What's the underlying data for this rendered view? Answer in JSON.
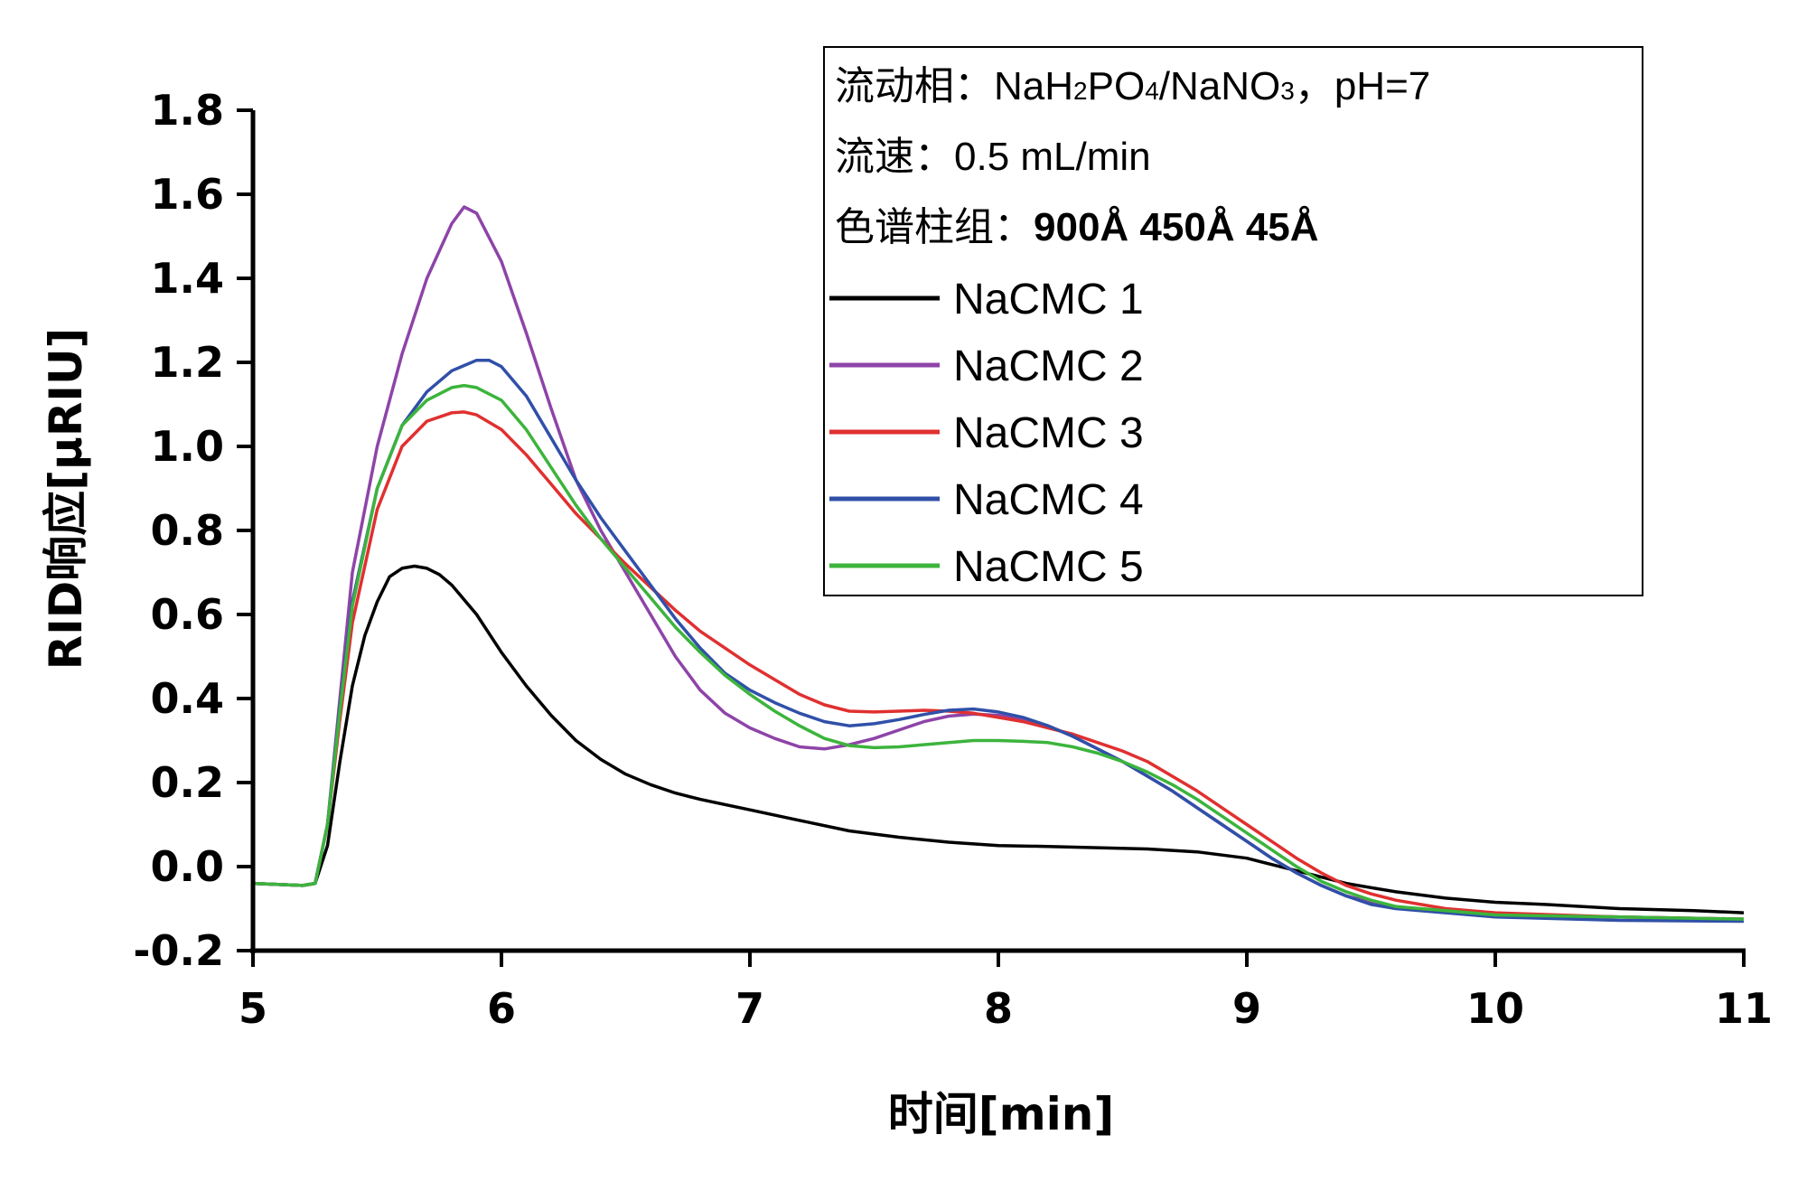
{
  "chart_data": {
    "type": "line",
    "xlabel": "时间[min]",
    "ylabel": "RID响应[μRIU]",
    "xlim": [
      5,
      11
    ],
    "ylim": [
      -0.2,
      1.8
    ],
    "xticks": [
      "5",
      "6",
      "7",
      "8",
      "9",
      "10",
      "11"
    ],
    "yticks": [
      "-0.2",
      "0.0",
      "0.2",
      "0.4",
      "0.6",
      "0.8",
      "1.0",
      "1.2",
      "1.4",
      "1.6",
      "1.8"
    ],
    "grid": false,
    "legend_position": "top-right",
    "annotations": {
      "mobile_phase_label": "流动相：",
      "mobile_phase_part1": "NaH",
      "mobile_phase_sub1": "2",
      "mobile_phase_part2": "PO",
      "mobile_phase_sub2": "4",
      "mobile_phase_part3": "/NaNO",
      "mobile_phase_sub3": "3",
      "mobile_phase_part4": "，pH=7",
      "flow_rate": "流速：0.5 mL/min",
      "column_label": "色谱柱组：",
      "column_value": "900Å 450Å 45Å"
    },
    "series": [
      {
        "name": "NaCMC 1",
        "color": "#000000",
        "points": [
          [
            5.0,
            -0.04
          ],
          [
            5.2,
            -0.045
          ],
          [
            5.25,
            -0.04
          ],
          [
            5.3,
            0.05
          ],
          [
            5.35,
            0.25
          ],
          [
            5.4,
            0.43
          ],
          [
            5.45,
            0.55
          ],
          [
            5.5,
            0.63
          ],
          [
            5.55,
            0.69
          ],
          [
            5.6,
            0.71
          ],
          [
            5.65,
            0.715
          ],
          [
            5.7,
            0.71
          ],
          [
            5.75,
            0.695
          ],
          [
            5.8,
            0.67
          ],
          [
            5.9,
            0.6
          ],
          [
            6.0,
            0.51
          ],
          [
            6.1,
            0.43
          ],
          [
            6.2,
            0.36
          ],
          [
            6.3,
            0.3
          ],
          [
            6.4,
            0.255
          ],
          [
            6.5,
            0.22
          ],
          [
            6.6,
            0.195
          ],
          [
            6.7,
            0.175
          ],
          [
            6.8,
            0.16
          ],
          [
            7.0,
            0.135
          ],
          [
            7.2,
            0.11
          ],
          [
            7.4,
            0.085
          ],
          [
            7.6,
            0.07
          ],
          [
            7.8,
            0.058
          ],
          [
            8.0,
            0.05
          ],
          [
            8.2,
            0.048
          ],
          [
            8.4,
            0.045
          ],
          [
            8.6,
            0.042
          ],
          [
            8.8,
            0.035
          ],
          [
            9.0,
            0.02
          ],
          [
            9.1,
            0.005
          ],
          [
            9.2,
            -0.01
          ],
          [
            9.3,
            -0.025
          ],
          [
            9.4,
            -0.04
          ],
          [
            9.5,
            -0.05
          ],
          [
            9.6,
            -0.06
          ],
          [
            9.8,
            -0.075
          ],
          [
            10.0,
            -0.085
          ],
          [
            10.2,
            -0.09
          ],
          [
            10.5,
            -0.1
          ],
          [
            10.8,
            -0.105
          ],
          [
            11.0,
            -0.11
          ]
        ]
      },
      {
        "name": "NaCMC 2",
        "color": "#8e44a8",
        "points": [
          [
            5.0,
            -0.04
          ],
          [
            5.2,
            -0.045
          ],
          [
            5.25,
            -0.04
          ],
          [
            5.3,
            0.1
          ],
          [
            5.35,
            0.4
          ],
          [
            5.4,
            0.7
          ],
          [
            5.5,
            1.0
          ],
          [
            5.6,
            1.22
          ],
          [
            5.7,
            1.4
          ],
          [
            5.8,
            1.53
          ],
          [
            5.85,
            1.57
          ],
          [
            5.9,
            1.555
          ],
          [
            6.0,
            1.44
          ],
          [
            6.1,
            1.27
          ],
          [
            6.2,
            1.09
          ],
          [
            6.3,
            0.92
          ],
          [
            6.4,
            0.8
          ],
          [
            6.5,
            0.7
          ],
          [
            6.6,
            0.6
          ],
          [
            6.7,
            0.5
          ],
          [
            6.8,
            0.42
          ],
          [
            6.9,
            0.365
          ],
          [
            7.0,
            0.33
          ],
          [
            7.1,
            0.305
          ],
          [
            7.2,
            0.285
          ],
          [
            7.3,
            0.28
          ],
          [
            7.4,
            0.29
          ],
          [
            7.5,
            0.305
          ],
          [
            7.6,
            0.325
          ],
          [
            7.7,
            0.345
          ],
          [
            7.8,
            0.358
          ],
          [
            7.9,
            0.363
          ],
          [
            8.0,
            0.36
          ],
          [
            8.1,
            0.35
          ],
          [
            8.2,
            0.335
          ],
          [
            8.3,
            0.31
          ],
          [
            8.4,
            0.28
          ],
          [
            8.5,
            0.25
          ],
          [
            8.6,
            0.215
          ],
          [
            8.7,
            0.18
          ],
          [
            8.8,
            0.14
          ],
          [
            8.9,
            0.1
          ],
          [
            9.0,
            0.06
          ],
          [
            9.1,
            0.02
          ],
          [
            9.2,
            -0.015
          ],
          [
            9.3,
            -0.045
          ],
          [
            9.4,
            -0.07
          ],
          [
            9.5,
            -0.085
          ],
          [
            9.6,
            -0.095
          ],
          [
            9.8,
            -0.108
          ],
          [
            10.0,
            -0.115
          ],
          [
            10.5,
            -0.12
          ],
          [
            11.0,
            -0.125
          ]
        ]
      },
      {
        "name": "NaCMC 3",
        "color": "#e03030",
        "points": [
          [
            5.0,
            -0.04
          ],
          [
            5.2,
            -0.045
          ],
          [
            5.25,
            -0.04
          ],
          [
            5.3,
            0.1
          ],
          [
            5.35,
            0.35
          ],
          [
            5.4,
            0.58
          ],
          [
            5.5,
            0.85
          ],
          [
            5.6,
            1.0
          ],
          [
            5.7,
            1.06
          ],
          [
            5.8,
            1.08
          ],
          [
            5.85,
            1.082
          ],
          [
            5.9,
            1.075
          ],
          [
            6.0,
            1.04
          ],
          [
            6.1,
            0.98
          ],
          [
            6.2,
            0.91
          ],
          [
            6.3,
            0.84
          ],
          [
            6.4,
            0.78
          ],
          [
            6.5,
            0.72
          ],
          [
            6.6,
            0.665
          ],
          [
            6.7,
            0.61
          ],
          [
            6.8,
            0.56
          ],
          [
            6.9,
            0.52
          ],
          [
            7.0,
            0.48
          ],
          [
            7.1,
            0.445
          ],
          [
            7.2,
            0.41
          ],
          [
            7.3,
            0.385
          ],
          [
            7.4,
            0.37
          ],
          [
            7.5,
            0.368
          ],
          [
            7.6,
            0.37
          ],
          [
            7.7,
            0.372
          ],
          [
            7.8,
            0.37
          ],
          [
            7.9,
            0.365
          ],
          [
            8.0,
            0.355
          ],
          [
            8.1,
            0.345
          ],
          [
            8.2,
            0.33
          ],
          [
            8.3,
            0.315
          ],
          [
            8.4,
            0.295
          ],
          [
            8.5,
            0.275
          ],
          [
            8.6,
            0.25
          ],
          [
            8.7,
            0.215
          ],
          [
            8.8,
            0.18
          ],
          [
            8.9,
            0.14
          ],
          [
            9.0,
            0.1
          ],
          [
            9.1,
            0.06
          ],
          [
            9.2,
            0.02
          ],
          [
            9.3,
            -0.015
          ],
          [
            9.4,
            -0.045
          ],
          [
            9.5,
            -0.065
          ],
          [
            9.6,
            -0.08
          ],
          [
            9.8,
            -0.1
          ],
          [
            10.0,
            -0.11
          ],
          [
            10.5,
            -0.12
          ],
          [
            11.0,
            -0.125
          ]
        ]
      },
      {
        "name": "NaCMC 4",
        "color": "#3050a8",
        "points": [
          [
            5.0,
            -0.04
          ],
          [
            5.2,
            -0.045
          ],
          [
            5.25,
            -0.04
          ],
          [
            5.3,
            0.1
          ],
          [
            5.35,
            0.38
          ],
          [
            5.4,
            0.63
          ],
          [
            5.5,
            0.9
          ],
          [
            5.6,
            1.05
          ],
          [
            5.7,
            1.13
          ],
          [
            5.8,
            1.18
          ],
          [
            5.9,
            1.205
          ],
          [
            5.95,
            1.205
          ],
          [
            6.0,
            1.19
          ],
          [
            6.1,
            1.12
          ],
          [
            6.2,
            1.02
          ],
          [
            6.3,
            0.92
          ],
          [
            6.4,
            0.83
          ],
          [
            6.5,
            0.75
          ],
          [
            6.6,
            0.67
          ],
          [
            6.7,
            0.59
          ],
          [
            6.8,
            0.52
          ],
          [
            6.9,
            0.46
          ],
          [
            7.0,
            0.42
          ],
          [
            7.1,
            0.39
          ],
          [
            7.2,
            0.365
          ],
          [
            7.3,
            0.345
          ],
          [
            7.4,
            0.335
          ],
          [
            7.5,
            0.34
          ],
          [
            7.6,
            0.35
          ],
          [
            7.7,
            0.362
          ],
          [
            7.8,
            0.372
          ],
          [
            7.9,
            0.375
          ],
          [
            8.0,
            0.368
          ],
          [
            8.1,
            0.355
          ],
          [
            8.2,
            0.335
          ],
          [
            8.3,
            0.31
          ],
          [
            8.4,
            0.28
          ],
          [
            8.5,
            0.25
          ],
          [
            8.6,
            0.215
          ],
          [
            8.7,
            0.18
          ],
          [
            8.8,
            0.14
          ],
          [
            8.9,
            0.1
          ],
          [
            9.0,
            0.06
          ],
          [
            9.1,
            0.02
          ],
          [
            9.2,
            -0.015
          ],
          [
            9.3,
            -0.045
          ],
          [
            9.4,
            -0.07
          ],
          [
            9.5,
            -0.09
          ],
          [
            9.6,
            -0.1
          ],
          [
            9.8,
            -0.11
          ],
          [
            10.0,
            -0.12
          ],
          [
            10.5,
            -0.128
          ],
          [
            11.0,
            -0.13
          ]
        ]
      },
      {
        "name": "NaCMC 5",
        "color": "#3cb43c",
        "points": [
          [
            5.0,
            -0.04
          ],
          [
            5.2,
            -0.045
          ],
          [
            5.25,
            -0.04
          ],
          [
            5.3,
            0.1
          ],
          [
            5.35,
            0.37
          ],
          [
            5.4,
            0.62
          ],
          [
            5.5,
            0.9
          ],
          [
            5.6,
            1.05
          ],
          [
            5.7,
            1.11
          ],
          [
            5.8,
            1.14
          ],
          [
            5.85,
            1.145
          ],
          [
            5.9,
            1.14
          ],
          [
            6.0,
            1.11
          ],
          [
            6.1,
            1.04
          ],
          [
            6.2,
            0.95
          ],
          [
            6.3,
            0.86
          ],
          [
            6.4,
            0.78
          ],
          [
            6.5,
            0.71
          ],
          [
            6.6,
            0.64
          ],
          [
            6.7,
            0.57
          ],
          [
            6.8,
            0.51
          ],
          [
            6.9,
            0.455
          ],
          [
            7.0,
            0.41
          ],
          [
            7.1,
            0.37
          ],
          [
            7.2,
            0.335
          ],
          [
            7.3,
            0.305
          ],
          [
            7.4,
            0.288
          ],
          [
            7.5,
            0.283
          ],
          [
            7.6,
            0.285
          ],
          [
            7.7,
            0.29
          ],
          [
            7.8,
            0.295
          ],
          [
            7.9,
            0.3
          ],
          [
            8.0,
            0.3
          ],
          [
            8.1,
            0.298
          ],
          [
            8.2,
            0.295
          ],
          [
            8.3,
            0.285
          ],
          [
            8.4,
            0.27
          ],
          [
            8.5,
            0.25
          ],
          [
            8.6,
            0.225
          ],
          [
            8.7,
            0.195
          ],
          [
            8.8,
            0.16
          ],
          [
            8.9,
            0.12
          ],
          [
            9.0,
            0.08
          ],
          [
            9.1,
            0.04
          ],
          [
            9.2,
            0.0
          ],
          [
            9.3,
            -0.035
          ],
          [
            9.4,
            -0.06
          ],
          [
            9.5,
            -0.08
          ],
          [
            9.6,
            -0.095
          ],
          [
            9.8,
            -0.105
          ],
          [
            10.0,
            -0.115
          ],
          [
            10.5,
            -0.12
          ],
          [
            11.0,
            -0.125
          ]
        ]
      }
    ]
  }
}
